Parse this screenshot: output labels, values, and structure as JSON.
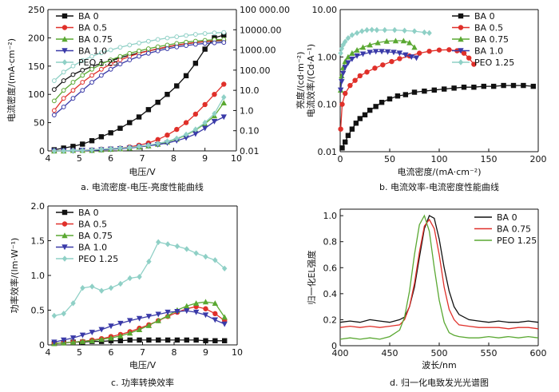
{
  "chart_data": [
    {
      "id": "a",
      "type": "line",
      "caption": "a. 电流密度-电压-亮度性能曲线",
      "xlabel": "电压/V",
      "ylabel": "电流密度/(mA·cm⁻²)",
      "y2label": "亮度/(cd·m⁻²)",
      "xlim": [
        4,
        10
      ],
      "ylim": [
        0,
        250
      ],
      "y2lim": [
        0.01,
        100000
      ],
      "y2scale": "log",
      "xticks": [
        "4",
        "5",
        "6",
        "7",
        "8",
        "9",
        "10"
      ],
      "yticks": [
        "0",
        "50",
        "100",
        "150",
        "200",
        "250"
      ],
      "y2ticks": [
        "0.01",
        "0.10",
        "1.0",
        "10.0",
        "100.00",
        "1000.00",
        "10000.00",
        "100 000.00"
      ],
      "legend_position": "top-left",
      "series": [
        {
          "name": "BA 0",
          "color": "#111111",
          "marker": "square",
          "x": [
            4.2,
            4.5,
            4.8,
            5.1,
            5.4,
            5.7,
            6.0,
            6.3,
            6.6,
            6.9,
            7.2,
            7.5,
            7.8,
            8.1,
            8.4,
            8.7,
            9.0,
            9.3,
            9.6
          ],
          "current": [
            2,
            5,
            8,
            12,
            18,
            25,
            32,
            40,
            50,
            60,
            73,
            86,
            100,
            115,
            133,
            155,
            180,
            200,
            205
          ],
          "luminance": [
            11,
            30,
            60,
            100,
            150,
            220,
            300,
            420,
            550,
            720,
            900,
            1100,
            1400,
            1700,
            2000,
            2300,
            2600,
            2800,
            2900
          ]
        },
        {
          "name": "BA 0.5",
          "color": "#e0302a",
          "marker": "circle",
          "x": [
            4.2,
            4.5,
            4.8,
            5.1,
            5.4,
            5.7,
            6.0,
            6.3,
            6.6,
            6.9,
            7.2,
            7.5,
            7.8,
            8.1,
            8.4,
            8.7,
            9.0,
            9.3,
            9.6
          ],
          "current": [
            0,
            0,
            1,
            1,
            2,
            3,
            4,
            5,
            7,
            10,
            14,
            20,
            28,
            38,
            50,
            65,
            82,
            100,
            118
          ],
          "luminance": [
            1,
            4,
            10,
            25,
            55,
            110,
            200,
            320,
            480,
            680,
            900,
            1150,
            1450,
            1750,
            2050,
            2350,
            2650,
            2900,
            3100
          ]
        },
        {
          "name": "BA 0.75",
          "color": "#5aa832",
          "marker": "triangle",
          "x": [
            4.2,
            4.5,
            4.8,
            5.1,
            5.4,
            5.7,
            6.0,
            6.3,
            6.6,
            6.9,
            7.2,
            7.5,
            7.8,
            8.1,
            8.4,
            8.7,
            9.0,
            9.3,
            9.6
          ],
          "current": [
            0,
            0,
            1,
            1,
            1,
            2,
            3,
            4,
            5,
            7,
            9,
            12,
            16,
            21,
            28,
            37,
            48,
            62,
            85
          ],
          "luminance": [
            3,
            10,
            25,
            55,
            110,
            200,
            320,
            480,
            680,
            900,
            1150,
            1450,
            1750,
            2100,
            2450,
            2750,
            3000,
            3200,
            3300
          ]
        },
        {
          "name": "BA 1.0",
          "color": "#3a3aa8",
          "marker": "triangle-down",
          "x": [
            4.2,
            4.5,
            4.8,
            5.1,
            5.4,
            5.7,
            6.0,
            6.3,
            6.6,
            6.9,
            7.2,
            7.5,
            7.8,
            8.1,
            8.4,
            8.7,
            9.0,
            9.3,
            9.6
          ],
          "current": [
            0,
            0,
            0,
            1,
            1,
            2,
            3,
            4,
            5,
            7,
            9,
            11,
            14,
            18,
            23,
            30,
            40,
            52,
            60
          ],
          "luminance": [
            0.6,
            1.5,
            4,
            10,
            25,
            55,
            110,
            200,
            320,
            480,
            680,
            900,
            1150,
            1400,
            1650,
            1900,
            2100,
            2250,
            2350
          ]
        },
        {
          "name": "PEO 1.25",
          "color": "#8fd0c6",
          "marker": "diamond",
          "x": [
            4.2,
            4.5,
            4.8,
            5.1,
            5.4,
            5.7,
            6.0,
            6.3,
            6.6,
            6.9,
            7.2,
            7.5,
            7.8,
            8.1,
            8.4,
            8.7,
            9.0,
            9.3,
            9.6
          ],
          "current": [
            0,
            0,
            1,
            1,
            2,
            3,
            4,
            5,
            6,
            8,
            10,
            13,
            17,
            22,
            29,
            38,
            50,
            66,
            95
          ],
          "luminance": [
            30,
            80,
            160,
            300,
            480,
            720,
            1000,
            1350,
            1750,
            2200,
            2700,
            3300,
            3900,
            4500,
            5200,
            5900,
            6500,
            7000,
            7400
          ]
        }
      ]
    },
    {
      "id": "b",
      "type": "line",
      "caption": "b. 电流效率-电流密度性能曲线",
      "xlabel": "电流密度/(mA·cm⁻²)",
      "ylabel": "电流效率/(Cd·A⁻¹)",
      "xlim": [
        0,
        200
      ],
      "ylim": [
        0.01,
        10
      ],
      "yscale": "log",
      "xticks": [
        "0",
        "50",
        "100",
        "150",
        "200"
      ],
      "yticks": [
        "0.01",
        "0.10",
        "1.00",
        "10.00"
      ],
      "legend_position": "top-right",
      "series": [
        {
          "name": "BA 0",
          "color": "#111111",
          "marker": "square",
          "x": [
            2,
            5,
            8,
            12,
            16,
            20,
            25,
            30,
            36,
            42,
            50,
            58,
            66,
            75,
            85,
            95,
            105,
            115,
            125,
            135,
            145,
            155,
            165,
            175,
            185,
            195
          ],
          "y": [
            0.012,
            0.016,
            0.022,
            0.03,
            0.04,
            0.05,
            0.06,
            0.075,
            0.09,
            0.11,
            0.13,
            0.15,
            0.16,
            0.18,
            0.19,
            0.2,
            0.21,
            0.22,
            0.23,
            0.23,
            0.24,
            0.24,
            0.25,
            0.25,
            0.25,
            0.24
          ]
        },
        {
          "name": "BA 0.5",
          "color": "#e0302a",
          "marker": "circle",
          "x": [
            0.5,
            2,
            5,
            10,
            15,
            20,
            27,
            35,
            43,
            52,
            60,
            70,
            80,
            90,
            100,
            110,
            118,
            125,
            130,
            135
          ],
          "y": [
            0.03,
            0.1,
            0.17,
            0.25,
            0.32,
            0.4,
            0.48,
            0.58,
            0.68,
            0.8,
            0.92,
            1.05,
            1.2,
            1.32,
            1.4,
            1.42,
            1.35,
            1.2,
            0.95,
            0.7
          ]
        },
        {
          "name": "BA 0.75",
          "color": "#5aa832",
          "marker": "triangle",
          "x": [
            0.5,
            1.5,
            3,
            5,
            8,
            12,
            17,
            23,
            30,
            38,
            47,
            56,
            64,
            70,
            75
          ],
          "y": [
            0.2,
            0.4,
            0.6,
            0.8,
            1.0,
            1.2,
            1.4,
            1.6,
            1.8,
            2.0,
            2.15,
            2.2,
            2.2,
            2.0,
            1.6
          ]
        },
        {
          "name": "BA 1.0",
          "color": "#3a3aa8",
          "marker": "triangle-down",
          "x": [
            0.5,
            1.5,
            3,
            5,
            8,
            12,
            17,
            23,
            30,
            36,
            42,
            48,
            54,
            60,
            66,
            72,
            77
          ],
          "y": [
            0.2,
            0.3,
            0.45,
            0.6,
            0.75,
            0.9,
            1.05,
            1.15,
            1.25,
            1.3,
            1.3,
            1.28,
            1.25,
            1.2,
            1.1,
            1.0,
            0.95
          ]
        },
        {
          "name": "PEO 1.25",
          "color": "#8fd0c6",
          "marker": "diamond",
          "x": [
            0.5,
            1.5,
            3,
            5,
            8,
            12,
            17,
            22,
            27,
            32,
            37,
            45,
            55,
            65,
            75,
            85,
            90
          ],
          "y": [
            1.2,
            1.5,
            1.8,
            2.1,
            2.5,
            2.9,
            3.2,
            3.5,
            3.7,
            3.75,
            3.7,
            3.7,
            3.7,
            3.6,
            3.5,
            3.3,
            3.2
          ]
        }
      ]
    },
    {
      "id": "c",
      "type": "line",
      "caption": "c. 功率转换效率",
      "xlabel": "电压/V",
      "ylabel": "功率效率/(lm·W⁻¹)",
      "xlim": [
        4,
        10
      ],
      "ylim": [
        0,
        2.0
      ],
      "xticks": [
        "4",
        "5",
        "6",
        "7",
        "8",
        "9",
        "10"
      ],
      "yticks": [
        "0",
        "0.5",
        "1.0",
        "1.5",
        "2.0"
      ],
      "legend_position": "top-left",
      "series": [
        {
          "name": "BA 0",
          "color": "#111111",
          "marker": "square",
          "x": [
            4.2,
            4.5,
            4.8,
            5.1,
            5.4,
            5.7,
            6.0,
            6.3,
            6.6,
            6.9,
            7.2,
            7.5,
            7.8,
            8.1,
            8.4,
            8.7,
            9.0,
            9.3,
            9.6
          ],
          "y": [
            0.02,
            0.03,
            0.04,
            0.04,
            0.05,
            0.05,
            0.06,
            0.06,
            0.07,
            0.07,
            0.07,
            0.07,
            0.07,
            0.07,
            0.07,
            0.07,
            0.06,
            0.06,
            0.06
          ]
        },
        {
          "name": "BA 0.5",
          "color": "#e0302a",
          "marker": "circle",
          "x": [
            4.2,
            4.5,
            4.8,
            5.1,
            5.4,
            5.7,
            6.0,
            6.3,
            6.6,
            6.9,
            7.2,
            7.5,
            7.8,
            8.1,
            8.4,
            8.7,
            9.0,
            9.3,
            9.6
          ],
          "y": [
            0.02,
            0.03,
            0.04,
            0.05,
            0.07,
            0.09,
            0.12,
            0.15,
            0.19,
            0.24,
            0.29,
            0.35,
            0.41,
            0.47,
            0.52,
            0.55,
            0.52,
            0.45,
            0.35
          ]
        },
        {
          "name": "BA 0.75",
          "color": "#5aa832",
          "marker": "triangle",
          "x": [
            4.2,
            4.5,
            4.8,
            5.1,
            5.4,
            5.7,
            6.0,
            6.3,
            6.6,
            6.9,
            7.2,
            7.5,
            7.8,
            8.1,
            8.4,
            8.7,
            9.0,
            9.3,
            9.6
          ],
          "y": [
            0.02,
            0.03,
            0.04,
            0.05,
            0.06,
            0.08,
            0.1,
            0.13,
            0.17,
            0.22,
            0.28,
            0.35,
            0.42,
            0.5,
            0.56,
            0.6,
            0.62,
            0.6,
            0.4
          ]
        },
        {
          "name": "BA 1.0",
          "color": "#3a3aa8",
          "marker": "triangle-down",
          "x": [
            4.2,
            4.5,
            4.8,
            5.1,
            5.4,
            5.7,
            6.0,
            6.3,
            6.6,
            6.9,
            7.2,
            7.5,
            7.8,
            8.1,
            8.4,
            8.7,
            9.0,
            9.3,
            9.6
          ],
          "y": [
            0.04,
            0.07,
            0.1,
            0.14,
            0.18,
            0.22,
            0.27,
            0.31,
            0.35,
            0.38,
            0.41,
            0.44,
            0.47,
            0.48,
            0.49,
            0.47,
            0.43,
            0.36,
            0.3
          ]
        },
        {
          "name": "PEO 1.25",
          "color": "#8fd0c6",
          "marker": "diamond",
          "x": [
            4.2,
            4.5,
            4.8,
            5.1,
            5.4,
            5.7,
            6.0,
            6.3,
            6.6,
            6.9,
            7.2,
            7.5,
            7.8,
            8.1,
            8.4,
            8.7,
            9.0,
            9.3,
            9.6
          ],
          "y": [
            0.42,
            0.45,
            0.6,
            0.82,
            0.84,
            0.78,
            0.82,
            0.88,
            0.96,
            0.98,
            1.2,
            1.48,
            1.45,
            1.42,
            1.38,
            1.32,
            1.27,
            1.22,
            1.1
          ]
        }
      ]
    },
    {
      "id": "d",
      "type": "line",
      "caption": "d. 归一化电致发光光谱图",
      "xlabel": "波长/nm",
      "ylabel": "归一化EL强度",
      "xlim": [
        400,
        600
      ],
      "ylim": [
        0,
        1.05
      ],
      "xticks": [
        "400",
        "450",
        "500",
        "550",
        "600"
      ],
      "yticks": [
        "0",
        "0.2",
        "0.4",
        "0.6",
        "0.8",
        "1.0"
      ],
      "legend_position": "top-right",
      "series": [
        {
          "name": "BA 0",
          "color": "#111111",
          "x": [
            400,
            410,
            420,
            430,
            440,
            450,
            460,
            465,
            470,
            475,
            480,
            485,
            490,
            495,
            500,
            505,
            510,
            515,
            520,
            530,
            540,
            550,
            560,
            570,
            580,
            590,
            600
          ],
          "y": [
            0.18,
            0.19,
            0.18,
            0.2,
            0.19,
            0.18,
            0.2,
            0.22,
            0.3,
            0.45,
            0.68,
            0.9,
            1.0,
            0.98,
            0.82,
            0.6,
            0.42,
            0.3,
            0.24,
            0.2,
            0.19,
            0.18,
            0.19,
            0.18,
            0.18,
            0.19,
            0.18
          ]
        },
        {
          "name": "BA 0.75",
          "color": "#e0302a",
          "x": [
            400,
            410,
            420,
            430,
            440,
            450,
            460,
            465,
            470,
            475,
            480,
            485,
            490,
            495,
            500,
            505,
            510,
            515,
            520,
            530,
            540,
            550,
            560,
            570,
            580,
            590,
            600
          ],
          "y": [
            0.14,
            0.15,
            0.14,
            0.15,
            0.14,
            0.15,
            0.16,
            0.2,
            0.3,
            0.48,
            0.72,
            0.92,
            0.97,
            0.9,
            0.7,
            0.45,
            0.28,
            0.2,
            0.16,
            0.15,
            0.14,
            0.14,
            0.14,
            0.13,
            0.14,
            0.14,
            0.13
          ]
        },
        {
          "name": "PEO 1.25",
          "color": "#5aa832",
          "x": [
            400,
            410,
            420,
            430,
            440,
            450,
            460,
            465,
            470,
            475,
            480,
            485,
            490,
            495,
            500,
            505,
            510,
            515,
            520,
            530,
            540,
            550,
            560,
            570,
            580,
            590,
            600
          ],
          "y": [
            0.05,
            0.06,
            0.05,
            0.06,
            0.05,
            0.07,
            0.12,
            0.22,
            0.42,
            0.7,
            0.93,
            1.0,
            0.88,
            0.6,
            0.35,
            0.18,
            0.1,
            0.08,
            0.07,
            0.06,
            0.06,
            0.07,
            0.06,
            0.07,
            0.06,
            0.07,
            0.06
          ]
        }
      ]
    }
  ]
}
